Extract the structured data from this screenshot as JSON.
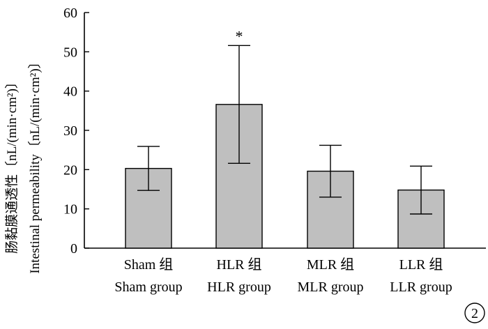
{
  "chart_data": {
    "type": "bar",
    "categories": [
      "Sham 组",
      "HLR 组",
      "MLR 组",
      "LLR 组"
    ],
    "categories_en": [
      "Sham group",
      "HLR group",
      "MLR group",
      "LLR group"
    ],
    "values": [
      20.3,
      36.6,
      19.6,
      14.8
    ],
    "error": [
      5.6,
      15.0,
      6.6,
      6.1
    ],
    "annotations": [
      "",
      "*",
      "",
      ""
    ],
    "ylabel": "肠黏膜通透性〔nL/(min·cm²)〕",
    "ylabel_en": "Intestinal permeability〔nL/(min·cm²)〕",
    "ylim": [
      0,
      60
    ],
    "yticks": [
      "0",
      "10",
      "20",
      "30",
      "40",
      "50",
      "60"
    ],
    "bar_color": "#bfbfbf",
    "grid": false,
    "panel_label": "2"
  }
}
